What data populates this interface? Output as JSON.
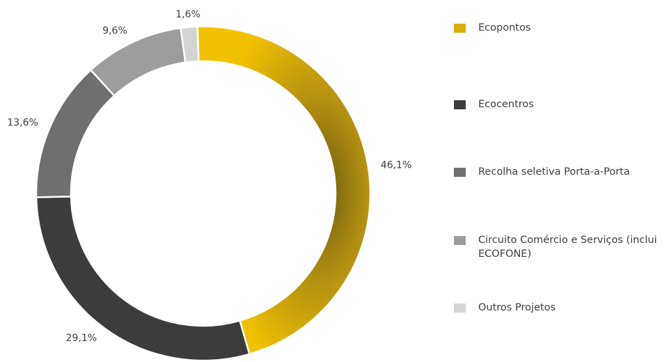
{
  "chart_data": {
    "type": "pie",
    "categories": [
      "Ecopontos",
      "Ecocentros",
      "Recolha seletiva Porta-a-Porta",
      "Circuito Comércio e Serviços (inclui ECOFONE)",
      "Outros Projetos"
    ],
    "values": [
      46.1,
      29.1,
      13.6,
      9.6,
      1.6
    ],
    "value_labels": [
      "46,1%",
      "29,1%",
      "13,6%",
      "9,6%",
      "1,6%"
    ],
    "colors": [
      "#d9ae0b",
      "#3c3c3b",
      "#6f6f6e",
      "#9d9d9c",
      "#d4d4d3"
    ],
    "legend": "right"
  }
}
